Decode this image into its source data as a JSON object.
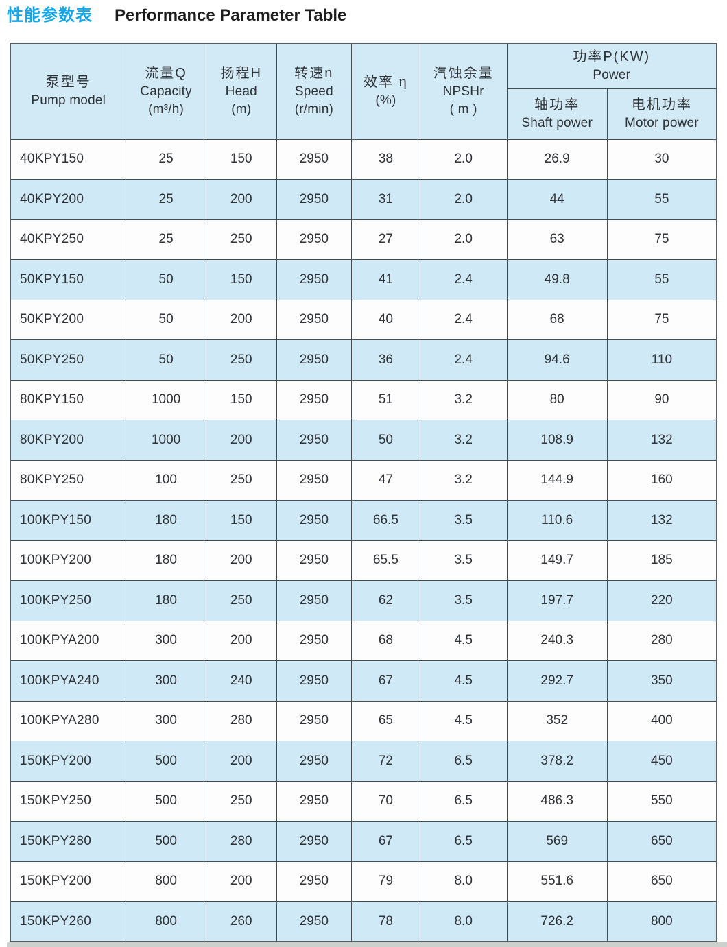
{
  "page_title": {
    "zh": "性能参数表",
    "en": "Performance Parameter Table"
  },
  "colors": {
    "title_accent": "#14a6e8",
    "header_bg": "#d2eaf6",
    "stripe_blue": "#cfe9f6",
    "stripe_white": "#fdfdfd",
    "grid_line": "#454c52",
    "text": "#2e3236"
  },
  "table": {
    "header": {
      "pump_model": {
        "zh": "泵型号",
        "en": "Pump model"
      },
      "capacity": {
        "zh": "流量Q",
        "en": "Capacity",
        "unit": "(m³/h)"
      },
      "head": {
        "zh": "扬程H",
        "en": "Head",
        "unit": "(m)"
      },
      "speed": {
        "zh": "转速n",
        "en": "Speed",
        "unit": "(r/min)"
      },
      "efficiency": {
        "zh": "效率 η",
        "unit": "(%)"
      },
      "npshr": {
        "zh": "汽蚀余量",
        "en": "NPSHr",
        "unit": "( m )"
      },
      "power_group": {
        "zh": "功率P(KW)",
        "en": "Power"
      },
      "shaft_power": {
        "zh": "轴功率",
        "en": "Shaft power"
      },
      "motor_power": {
        "zh": "电机功率",
        "en": "Motor power"
      }
    },
    "rows": [
      [
        "40KPY150",
        "25",
        "150",
        "2950",
        "38",
        "2.0",
        "26.9",
        "30"
      ],
      [
        "40KPY200",
        "25",
        "200",
        "2950",
        "31",
        "2.0",
        "44",
        "55"
      ],
      [
        "40KPY250",
        "25",
        "250",
        "2950",
        "27",
        "2.0",
        "63",
        "75"
      ],
      [
        "50KPY150",
        "50",
        "150",
        "2950",
        "41",
        "2.4",
        "49.8",
        "55"
      ],
      [
        "50KPY200",
        "50",
        "200",
        "2950",
        "40",
        "2.4",
        "68",
        "75"
      ],
      [
        "50KPY250",
        "50",
        "250",
        "2950",
        "36",
        "2.4",
        "94.6",
        "110"
      ],
      [
        "80KPY150",
        "1000",
        "150",
        "2950",
        "51",
        "3.2",
        "80",
        "90"
      ],
      [
        "80KPY200",
        "1000",
        "200",
        "2950",
        "50",
        "3.2",
        "108.9",
        "132"
      ],
      [
        "80KPY250",
        "100",
        "250",
        "2950",
        "47",
        "3.2",
        "144.9",
        "160"
      ],
      [
        "100KPY150",
        "180",
        "150",
        "2950",
        "66.5",
        "3.5",
        "110.6",
        "132"
      ],
      [
        "100KPY200",
        "180",
        "200",
        "2950",
        "65.5",
        "3.5",
        "149.7",
        "185"
      ],
      [
        "100KPY250",
        "180",
        "250",
        "2950",
        "62",
        "3.5",
        "197.7",
        "220"
      ],
      [
        "100KPYA200",
        "300",
        "200",
        "2950",
        "68",
        "4.5",
        "240.3",
        "280"
      ],
      [
        "100KPYA240",
        "300",
        "240",
        "2950",
        "67",
        "4.5",
        "292.7",
        "350"
      ],
      [
        "100KPYA280",
        "300",
        "280",
        "2950",
        "65",
        "4.5",
        "352",
        "400"
      ],
      [
        "150KPY200",
        "500",
        "200",
        "2950",
        "72",
        "6.5",
        "378.2",
        "450"
      ],
      [
        "150KPY250",
        "500",
        "250",
        "2950",
        "70",
        "6.5",
        "486.3",
        "550"
      ],
      [
        "150KPY280",
        "500",
        "280",
        "2950",
        "67",
        "6.5",
        "569",
        "650"
      ],
      [
        "150KPY200",
        "800",
        "200",
        "2950",
        "79",
        "8.0",
        "551.6",
        "650"
      ],
      [
        "150KPY260",
        "800",
        "260",
        "2950",
        "78",
        "8.0",
        "726.2",
        "800"
      ]
    ]
  }
}
